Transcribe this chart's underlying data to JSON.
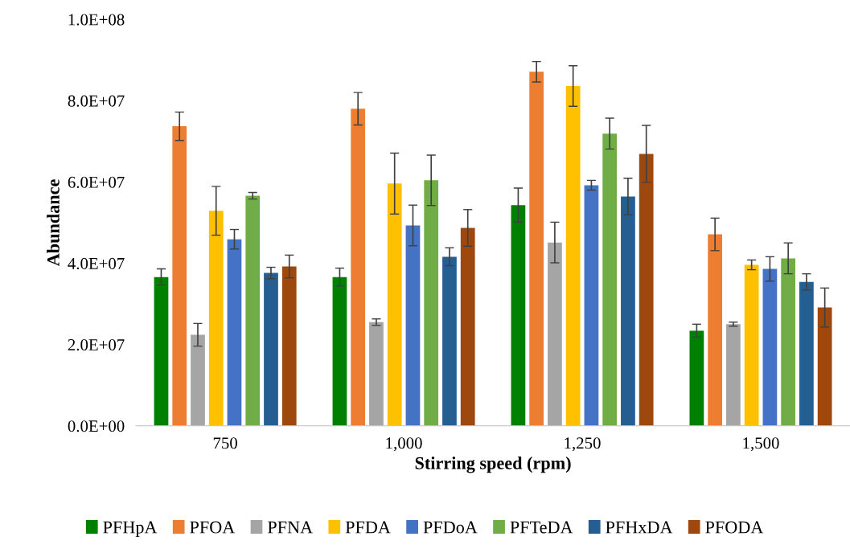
{
  "chart_data": {
    "type": "bar",
    "xlabel": "Stirring speed (rpm)",
    "ylabel": "Abundance",
    "categories": [
      "750",
      "1,000",
      "1,250",
      "1,500"
    ],
    "ylim": [
      0,
      100000000
    ],
    "yticks": [
      {
        "value": 0,
        "label": "0.0E+00"
      },
      {
        "value": 20000000,
        "label": "2.0E+07"
      },
      {
        "value": 40000000,
        "label": "4.0E+07"
      },
      {
        "value": 60000000,
        "label": "6.0E+07"
      },
      {
        "value": 80000000,
        "label": "8.0E+07"
      },
      {
        "value": 100000000,
        "label": "1.0E+08"
      }
    ],
    "grid": false,
    "legend": "bottom",
    "series": [
      {
        "name": "PFHpA",
        "color": "#008000",
        "values": [
          36600000,
          36600000,
          54300000,
          23400000
        ],
        "errors": [
          2000000,
          2200000,
          4200000,
          1600000
        ]
      },
      {
        "name": "PFOA",
        "color": "#ed7d31",
        "values": [
          73700000,
          78000000,
          87100000,
          47100000
        ],
        "errors": [
          3500000,
          4000000,
          2500000,
          4000000
        ]
      },
      {
        "name": "PFNA",
        "color": "#a5a5a5",
        "values": [
          22400000,
          25500000,
          45100000,
          25000000
        ],
        "errors": [
          2800000,
          800000,
          5000000,
          500000
        ]
      },
      {
        "name": "PFDA",
        "color": "#ffc000",
        "values": [
          52900000,
          59600000,
          83600000,
          39600000
        ],
        "errors": [
          6000000,
          7500000,
          5000000,
          1200000
        ]
      },
      {
        "name": "PFDoA",
        "color": "#4472c4",
        "values": [
          45900000,
          49300000,
          59200000,
          38600000
        ],
        "errors": [
          2400000,
          5000000,
          1200000,
          3000000
        ]
      },
      {
        "name": "PFTeDA",
        "color": "#70ad47",
        "values": [
          56600000,
          60400000,
          71900000,
          41200000
        ],
        "errors": [
          800000,
          6200000,
          3800000,
          3800000
        ]
      },
      {
        "name": "PFHxDA",
        "color": "#255e91",
        "values": [
          37600000,
          41600000,
          56400000,
          35400000
        ],
        "errors": [
          1400000,
          2200000,
          4500000,
          2000000
        ]
      },
      {
        "name": "PFODA",
        "color": "#9e480e",
        "values": [
          39200000,
          48700000,
          66900000,
          29100000
        ],
        "errors": [
          2800000,
          4500000,
          7000000,
          4800000
        ]
      }
    ]
  }
}
